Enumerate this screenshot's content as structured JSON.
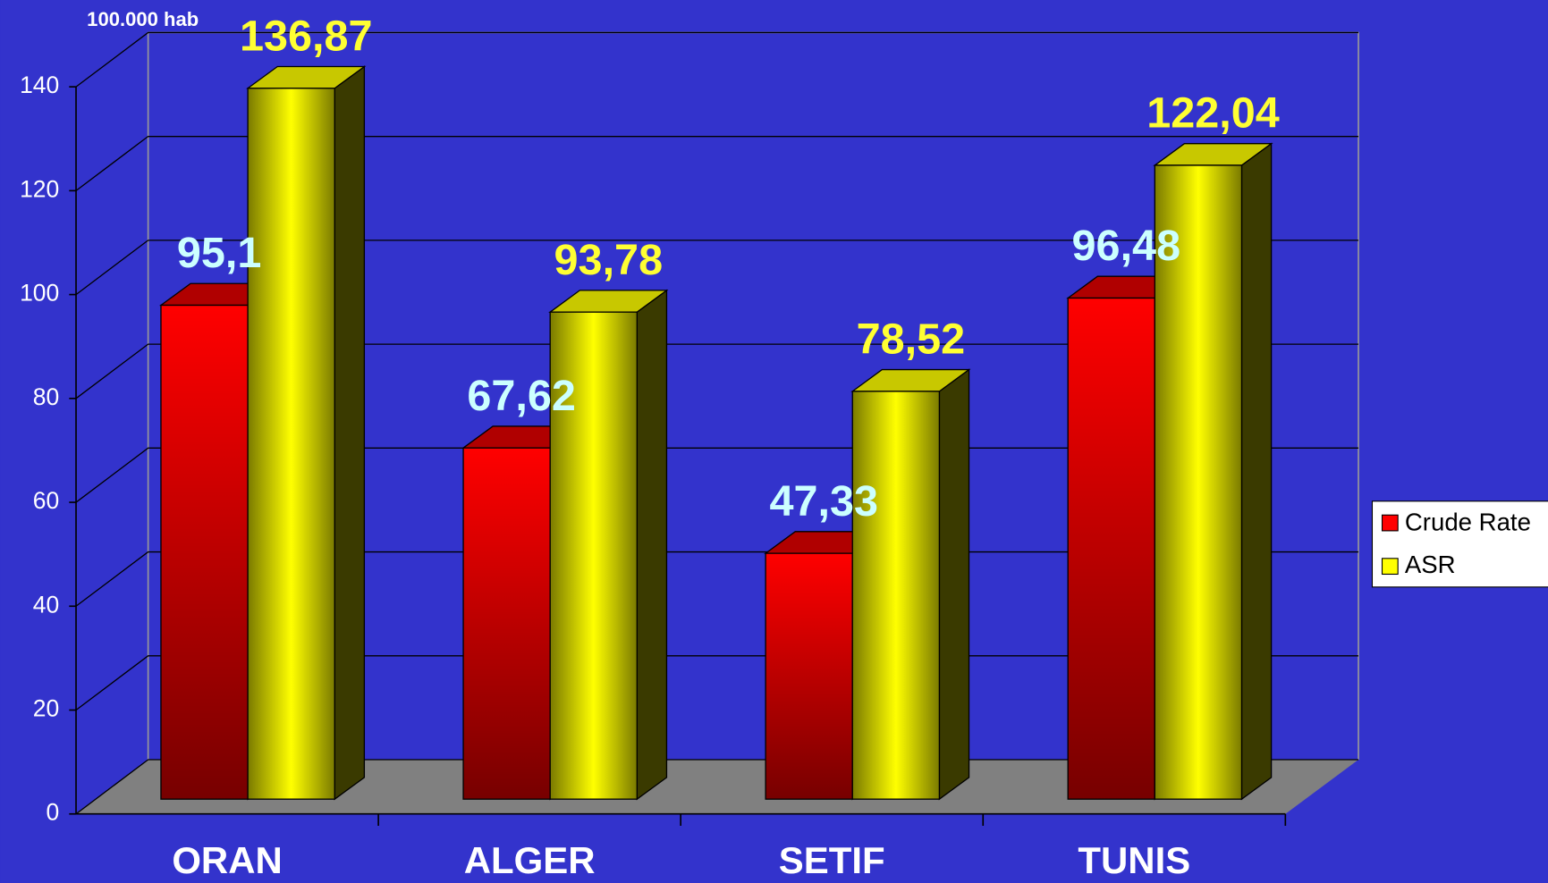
{
  "chart_data": {
    "type": "bar3d",
    "y_label": "100.000 hab",
    "categories": [
      "ORAN",
      "ALGER",
      "SETIF",
      "TUNIS"
    ],
    "series": [
      {
        "name": "Crude Rate",
        "color": "#ff0000",
        "values": [
          95.1,
          67.62,
          47.33,
          96.48
        ],
        "value_labels": [
          "95,1",
          "67,62",
          "47,33",
          "96,48"
        ]
      },
      {
        "name": "ASR",
        "color": "#ffff00",
        "values": [
          136.87,
          93.78,
          78.52,
          122.04
        ],
        "value_labels": [
          "136,87",
          "93,78",
          "78,52",
          "122,04"
        ]
      }
    ],
    "ylim": [
      0,
      140
    ],
    "yticks": [
      0,
      20,
      40,
      60,
      80,
      100,
      120,
      140
    ],
    "grid": true,
    "legend": "right"
  }
}
